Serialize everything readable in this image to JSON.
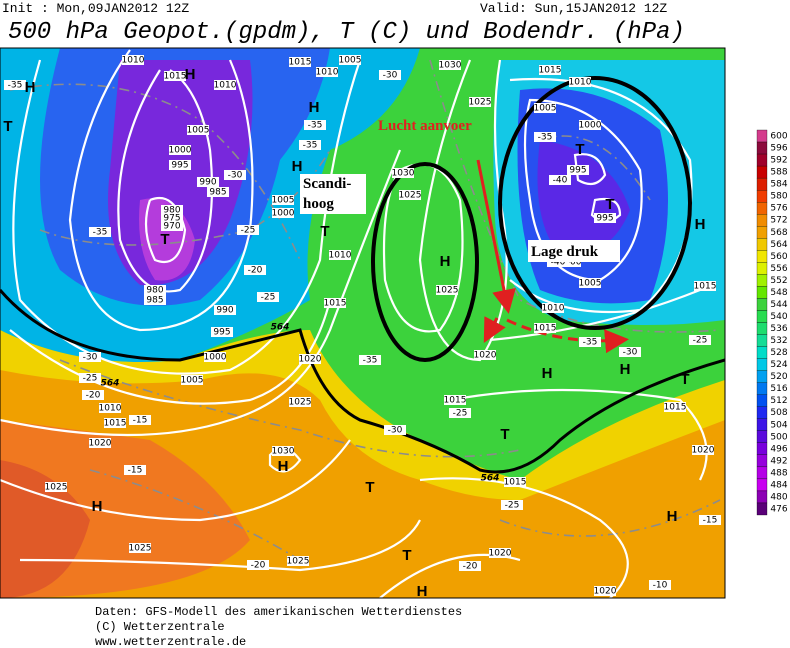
{
  "header": {
    "init": "Init : Mon,09JAN2012 12Z",
    "valid": "Valid: Sun,15JAN2012 12Z",
    "title": "500 hPa Geopot.(gpdm), T (C) und Bodendr. (hPa)"
  },
  "annotations": [
    "Lucht aanvoer",
    "Scandi-",
    "hoog",
    "Lage druk"
  ],
  "colorbar": [
    600,
    596,
    592,
    588,
    584,
    580,
    576,
    572,
    568,
    564,
    560,
    556,
    552,
    548,
    544,
    540,
    536,
    532,
    528,
    524,
    520,
    516,
    512,
    508,
    504,
    500,
    496,
    492,
    488,
    484,
    480,
    476
  ],
  "map_labels": {
    "pressure": [
      1010,
      1015,
      1010,
      1015,
      1010,
      1005,
      1030,
      1025,
      1015,
      1005,
      1010,
      1000,
      995,
      995,
      1005,
      1000,
      995,
      990,
      985,
      980,
      975,
      970,
      980,
      985,
      990,
      995,
      1000,
      1005,
      1010,
      1015,
      1020,
      1025,
      1025,
      1025,
      1030,
      1025,
      1020,
      1015,
      1010,
      1005,
      1000,
      1025,
      1030,
      1025,
      1020,
      1015,
      1000,
      1005,
      1010,
      1015,
      1015,
      1020,
      1020,
      1020,
      1015,
      1015
    ],
    "temperature": [
      -35,
      -35,
      -35,
      -30,
      -25,
      -20,
      -25,
      -35,
      -30,
      -25,
      -20,
      -15,
      -15,
      -35,
      -30,
      -25,
      -25,
      -20,
      -20,
      -10,
      -15,
      -30,
      -35,
      -40,
      -40,
      -35,
      -25,
      -30
    ],
    "contour": [
      564,
      564,
      564
    ],
    "centers": [
      "H",
      "H",
      "H",
      "H",
      "H",
      "H",
      "H",
      "H",
      "H",
      "H",
      "H",
      "H",
      "T",
      "T",
      "T",
      "T",
      "T",
      "T",
      "T",
      "T",
      "T"
    ]
  },
  "footer": [
    "Daten: GFS-Modell des amerikanischen Wetterdienstes",
    "(C) Wetterzentrale",
    "www.wetterzentrale.de"
  ]
}
